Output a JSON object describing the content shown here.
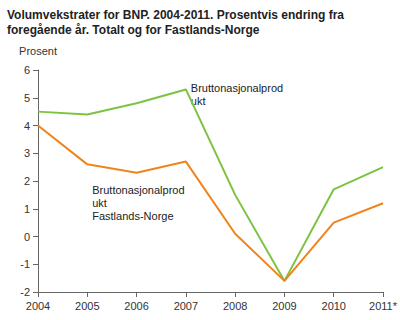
{
  "chart_data": {
    "type": "line",
    "title": "Volumvekstrater for BNP. 2004-2011. Prosentvis endring fra foregående år. Totalt og for Fastlands-Norge",
    "y_label": "Prosent",
    "categories": [
      "2004",
      "2005",
      "2006",
      "2007",
      "2008",
      "2009",
      "2010",
      "2011*"
    ],
    "series": [
      {
        "name": "Bruttonasjonalprodukt",
        "color": "#7dc242",
        "values": [
          4.5,
          4.4,
          4.8,
          5.3,
          1.5,
          -1.6,
          1.7,
          2.5
        ]
      },
      {
        "name": "Bruttonasjonalprodukt Fastlands-Norge",
        "color": "#f0841c",
        "values": [
          4.0,
          2.6,
          2.3,
          2.7,
          0.1,
          -1.6,
          0.5,
          1.2
        ]
      }
    ],
    "ylim": [
      -2,
      6
    ],
    "yticks": [
      -2,
      -1,
      0,
      1,
      2,
      3,
      4,
      5,
      6
    ],
    "grid": false
  }
}
